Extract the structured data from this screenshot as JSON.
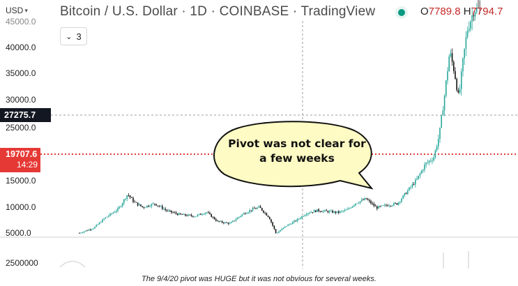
{
  "header": {
    "currency": "USD",
    "title": "Bitcoin / U.S. Dollar · 1D · COINBASE · TradingView",
    "ohlc_open_label": "O",
    "ohlc_open_value": "7789.8",
    "ohlc_high_label": "H",
    "ohlc_high_value": "7794.7"
  },
  "collapse_button": {
    "count": "3"
  },
  "price_axis": {
    "labels": [
      "45000.0",
      "40000.0",
      "35000.0",
      "30000.0",
      "25000.0",
      "15000.0",
      "10000.0",
      "5000.0"
    ]
  },
  "volume_axis": {
    "label": "2500000"
  },
  "price_tags": {
    "current_price": "27275.7",
    "level_price": "19707.6",
    "level_countdown": "14:29"
  },
  "annotation": {
    "text_line1": "Pivot was not clear for",
    "text_line2": "a few weeks"
  },
  "caption": "The 9/4/20 pivot was HUGE but it was not obvious for several weeks.",
  "colors": {
    "up_candle": "#26a69a",
    "down_candle": "#111111",
    "level_line": "#e53935",
    "bubble_fill": "#fffbc4",
    "status_dot": "#089981"
  }
}
